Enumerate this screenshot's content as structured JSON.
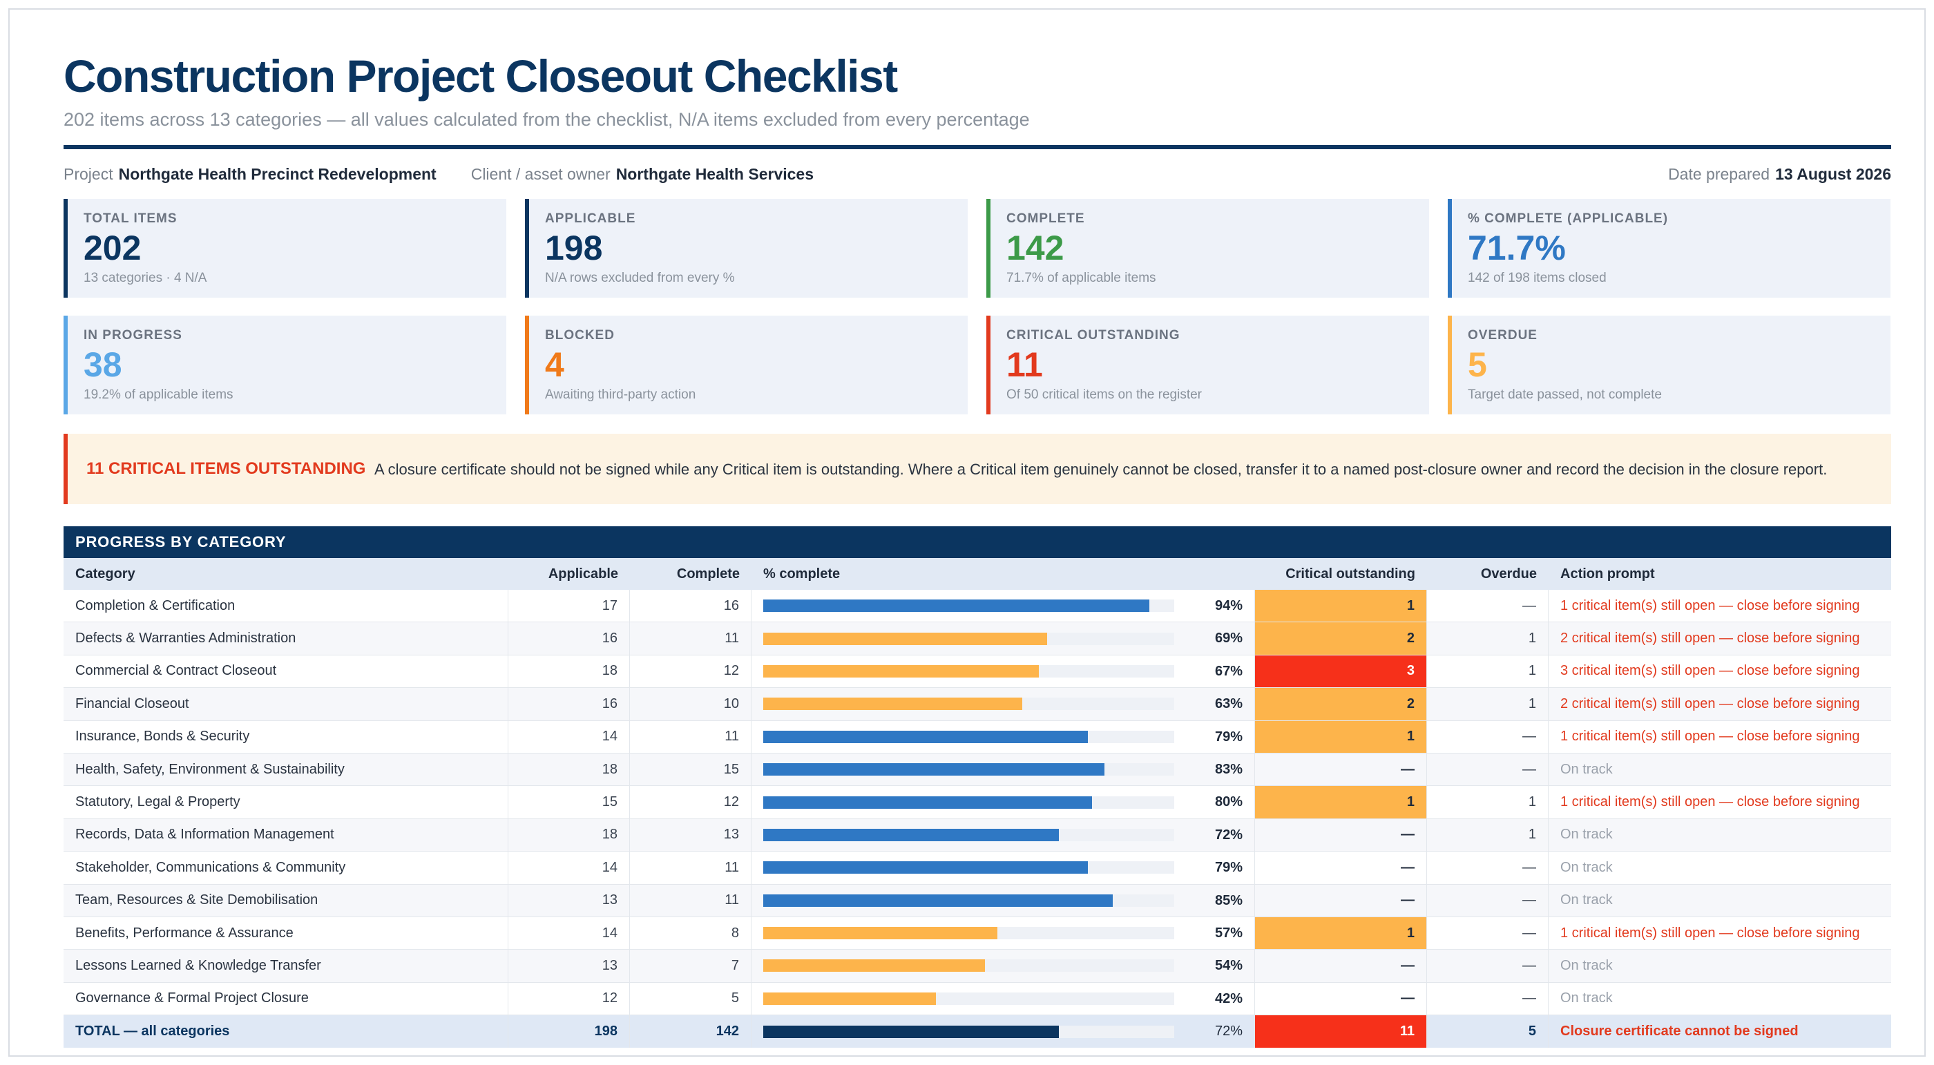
{
  "header": {
    "title": "Construction Project Closeout Checklist",
    "subtitle": "202 items across 13 categories — all values calculated from the checklist, N/A items excluded from every percentage"
  },
  "meta": {
    "project_label": "Project",
    "project_value": "Northgate Health Precinct Redevelopment",
    "client_label": "Client / asset owner",
    "client_value": "Northgate Health Services",
    "date_label": "Date prepared",
    "date_value": "13 August 2026"
  },
  "colors": {
    "navy": "#0b3560",
    "green": "#3c9a48",
    "blue": "#2f78c4",
    "light_blue": "#5aa7e6",
    "orange": "#f07a1a",
    "red": "#e23a1e",
    "amber": "#fdb44b"
  },
  "kpis": [
    {
      "label": "TOTAL ITEMS",
      "value": "202",
      "note": "13 categories · 4 N/A",
      "color": "#0b3560"
    },
    {
      "label": "APPLICABLE",
      "value": "198",
      "note": "N/A rows excluded from every %",
      "color": "#0b3560"
    },
    {
      "label": "COMPLETE",
      "value": "142",
      "note": "71.7% of applicable items",
      "color": "#3c9a48"
    },
    {
      "label": "% COMPLETE (APPLICABLE)",
      "value": "71.7%",
      "note": "142 of 198 items closed",
      "color": "#2f78c4"
    },
    {
      "label": "IN PROGRESS",
      "value": "38",
      "note": "19.2% of applicable items",
      "color": "#5aa7e6"
    },
    {
      "label": "BLOCKED",
      "value": "4",
      "note": "Awaiting third-party action",
      "color": "#f07a1a"
    },
    {
      "label": "CRITICAL OUTSTANDING",
      "value": "11",
      "note": "Of 50 critical items on the register",
      "color": "#e23a1e"
    },
    {
      "label": "OVERDUE",
      "value": "5",
      "note": "Target date passed, not complete",
      "color": "#fdb44b"
    }
  ],
  "alert": {
    "heading": "11 CRITICAL ITEMS OUTSTANDING",
    "body": "A closure certificate should not be signed while any Critical item is outstanding. Where a Critical item genuinely cannot be closed, transfer it to a named post-closure owner and record the decision in the closure report."
  },
  "table": {
    "title": "PROGRESS BY CATEGORY",
    "columns": [
      "Category",
      "Applicable",
      "Complete",
      "% complete",
      "Critical outstanding",
      "Overdue",
      "Action prompt"
    ],
    "rows": [
      {
        "category": "Completion & Certification",
        "applicable": "17",
        "complete": "16",
        "pct": "94%",
        "pct_value": 94,
        "critical": "1",
        "overdue": "—",
        "prompt": "1 critical item(s) still open — close before signing"
      },
      {
        "category": "Defects & Warranties Administration",
        "applicable": "16",
        "complete": "11",
        "pct": "69%",
        "pct_value": 69,
        "critical": "2",
        "overdue": "1",
        "prompt": "2 critical item(s) still open — close before signing"
      },
      {
        "category": "Commercial & Contract Closeout",
        "applicable": "18",
        "complete": "12",
        "pct": "67%",
        "pct_value": 67,
        "critical": "3",
        "overdue": "1",
        "prompt": "3 critical item(s) still open — close before signing"
      },
      {
        "category": "Financial Closeout",
        "applicable": "16",
        "complete": "10",
        "pct": "63%",
        "pct_value": 63,
        "critical": "2",
        "overdue": "1",
        "prompt": "2 critical item(s) still open — close before signing"
      },
      {
        "category": "Insurance, Bonds & Security",
        "applicable": "14",
        "complete": "11",
        "pct": "79%",
        "pct_value": 79,
        "critical": "1",
        "overdue": "—",
        "prompt": "1 critical item(s) still open — close before signing"
      },
      {
        "category": "Health, Safety, Environment & Sustainability",
        "applicable": "18",
        "complete": "15",
        "pct": "83%",
        "pct_value": 83,
        "critical": "—",
        "overdue": "—",
        "prompt": "On track"
      },
      {
        "category": "Statutory, Legal & Property",
        "applicable": "15",
        "complete": "12",
        "pct": "80%",
        "pct_value": 80,
        "critical": "1",
        "overdue": "1",
        "prompt": "1 critical item(s) still open — close before signing"
      },
      {
        "category": "Records, Data & Information Management",
        "applicable": "18",
        "complete": "13",
        "pct": "72%",
        "pct_value": 72,
        "critical": "—",
        "overdue": "1",
        "prompt": "On track"
      },
      {
        "category": "Stakeholder, Communications & Community",
        "applicable": "14",
        "complete": "11",
        "pct": "79%",
        "pct_value": 79,
        "critical": "—",
        "overdue": "—",
        "prompt": "On track"
      },
      {
        "category": "Team, Resources & Site Demobilisation",
        "applicable": "13",
        "complete": "11",
        "pct": "85%",
        "pct_value": 85,
        "critical": "—",
        "overdue": "—",
        "prompt": "On track"
      },
      {
        "category": "Benefits, Performance & Assurance",
        "applicable": "14",
        "complete": "8",
        "pct": "57%",
        "pct_value": 57,
        "critical": "1",
        "overdue": "—",
        "prompt": "1 critical item(s) still open — close before signing"
      },
      {
        "category": "Lessons Learned & Knowledge Transfer",
        "applicable": "13",
        "complete": "7",
        "pct": "54%",
        "pct_value": 54,
        "critical": "—",
        "overdue": "—",
        "prompt": "On track"
      },
      {
        "category": "Governance & Formal Project Closure",
        "applicable": "12",
        "complete": "5",
        "pct": "42%",
        "pct_value": 42,
        "critical": "—",
        "overdue": "—",
        "prompt": "On track"
      }
    ],
    "total": {
      "category": "TOTAL — all categories",
      "applicable": "198",
      "complete": "142",
      "pct": "72%",
      "pct_value": 72,
      "critical": "11",
      "overdue": "5",
      "prompt": "Closure certificate cannot be signed"
    }
  }
}
